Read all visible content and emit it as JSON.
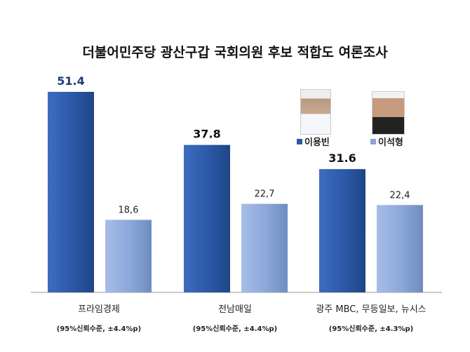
{
  "chart_data": {
    "type": "bar",
    "title": "더불어민주당 광산구갑 국회의원 후보 적합도 여론조사",
    "categories": [
      "프라임경제",
      "전남매일",
      "광주 MBC, 무등일보, 뉴시스"
    ],
    "notes": [
      "(95%신뢰수준, ±4.4%p)",
      "(95%신뢰수준, ±4.4%p)",
      "(95%신뢰수준, ±4.3%p)"
    ],
    "series": [
      {
        "name": "이용빈",
        "values": [
          51.4,
          37.8,
          31.6
        ],
        "labels": [
          "51.4",
          "37.8",
          "31.6"
        ],
        "color": "#2f5aa3"
      },
      {
        "name": "이석형",
        "values": [
          18.6,
          22.7,
          22.4
        ],
        "labels": [
          "18,6",
          "22,7",
          "22,4"
        ],
        "color": "#8aa6d6"
      }
    ],
    "ylim": [
      0,
      60
    ],
    "grid": false,
    "legend_placement": "top-right"
  }
}
